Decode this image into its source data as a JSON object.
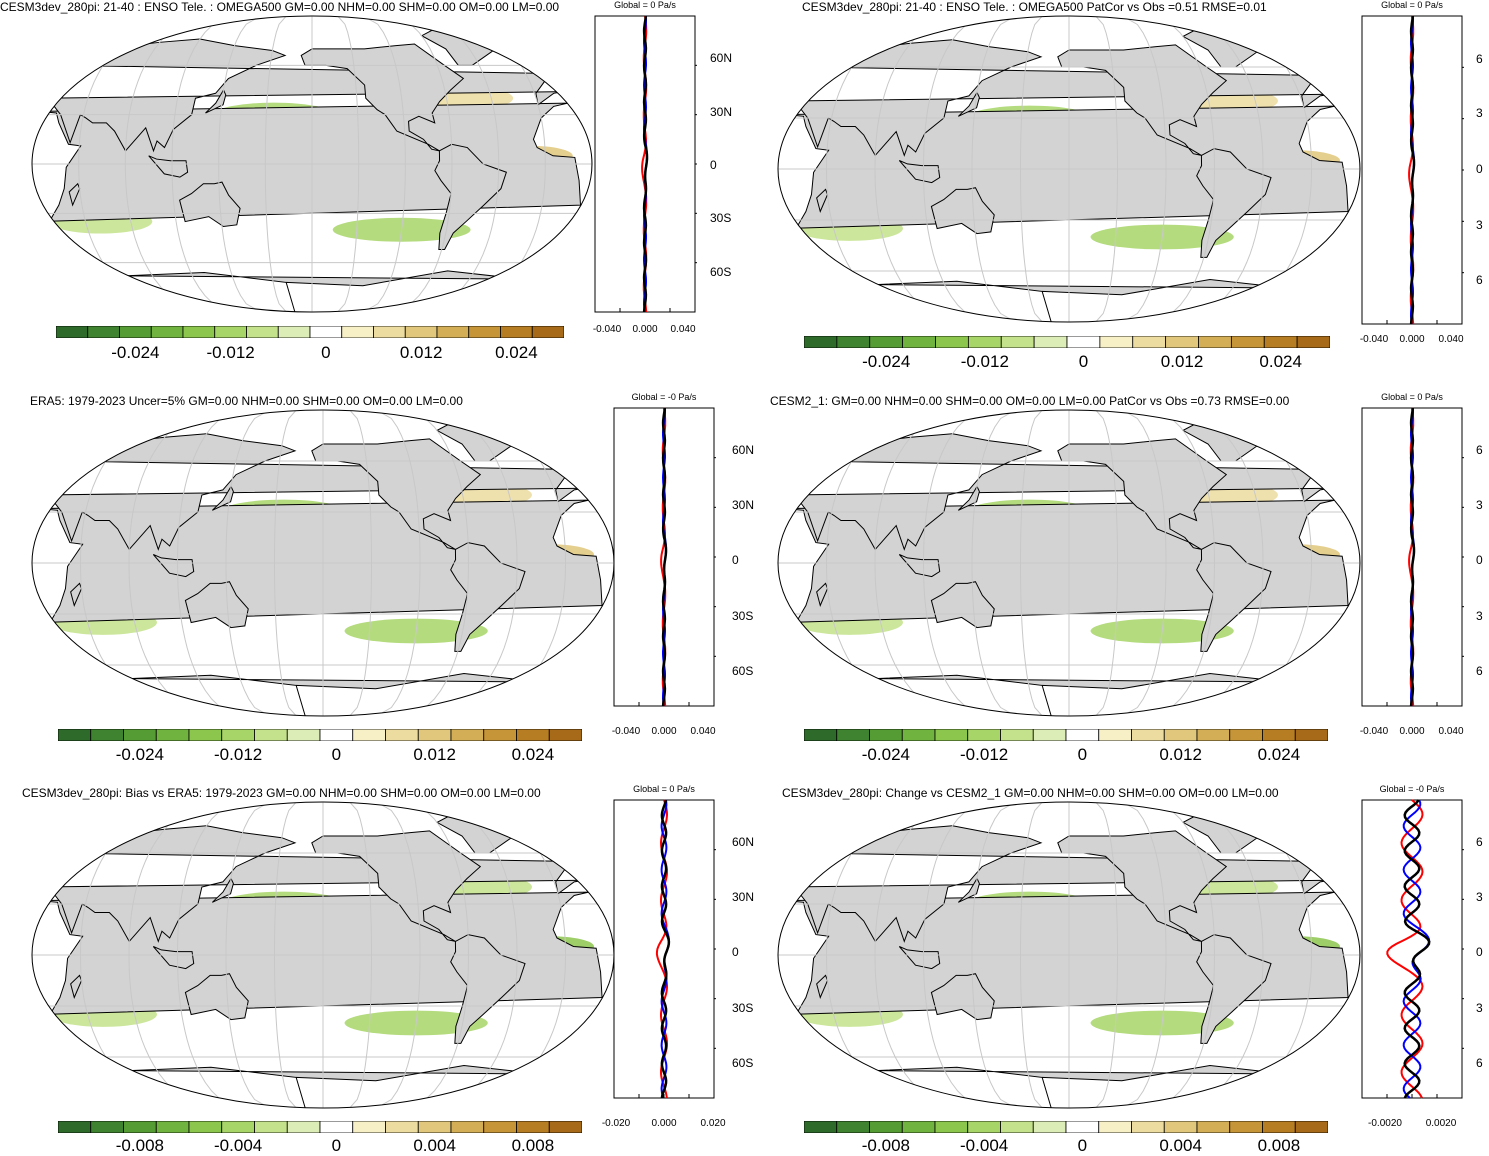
{
  "panels": [
    {
      "id": "p1",
      "title": "CESM3dev_280pi: 21-40 : ENSO Tele. : OMEGA500 GM=0.00 NHM=0.00 SHM=0.00 OM=0.00 LM=0.00",
      "colorbar_labels": [
        "-0.024",
        "-0.012",
        "0",
        "0.012",
        "0.024"
      ],
      "zonal_title": "Global = 0 Pa/s",
      "zonal_x_labels": [
        "-0.040",
        "0.000",
        "0.040"
      ],
      "lat_labels": [
        "60N",
        "30N",
        "0",
        "30S",
        "60S"
      ]
    },
    {
      "id": "p2",
      "title": "CESM3dev_280pi: 21-40 : ENSO Tele. : OMEGA500 PatCor vs Obs =0.51 RMSE=0.01",
      "colorbar_labels": [
        "-0.024",
        "-0.012",
        "0",
        "0.012",
        "0.024"
      ],
      "zonal_title": "Global = 0 Pa/s",
      "zonal_x_labels": [
        "-0.040",
        "0.000",
        "0.040"
      ],
      "lat_labels": [
        "6",
        "3",
        "0",
        "3",
        "6"
      ]
    },
    {
      "id": "p3",
      "title": "ERA5: 1979-2023 Uncer=5% GM=0.00 NHM=0.00 SHM=0.00 OM=0.00 LM=0.00",
      "colorbar_labels": [
        "-0.024",
        "-0.012",
        "0",
        "0.012",
        "0.024"
      ],
      "zonal_title": "Global = -0 Pa/s",
      "zonal_x_labels": [
        "-0.040",
        "0.000",
        "0.040"
      ],
      "lat_labels": [
        "60N",
        "30N",
        "0",
        "30S",
        "60S"
      ]
    },
    {
      "id": "p4",
      "title": "CESM2_1: GM=0.00 NHM=0.00 SHM=0.00 OM=0.00 LM=0.00 PatCor vs Obs =0.73 RMSE=0.00",
      "colorbar_labels": [
        "-0.024",
        "-0.012",
        "0",
        "0.012",
        "0.024"
      ],
      "zonal_title": "Global = 0 Pa/s",
      "zonal_x_labels": [
        "-0.040",
        "0.000",
        "0.040"
      ],
      "lat_labels": [
        "6",
        "3",
        "0",
        "3",
        "6"
      ]
    },
    {
      "id": "p5",
      "title": "CESM3dev_280pi: Bias vs ERA5: 1979-2023 GM=0.00 NHM=0.00 SHM=0.00 OM=0.00 LM=0.00",
      "colorbar_labels": [
        "-0.008",
        "-0.004",
        "0",
        "0.004",
        "0.008"
      ],
      "zonal_title": "Global = 0 Pa/s",
      "zonal_x_labels": [
        "-0.020",
        "0.000",
        "0.020"
      ],
      "lat_labels": [
        "60N",
        "30N",
        "0",
        "30S",
        "60S"
      ]
    },
    {
      "id": "p6",
      "title": "CESM3dev_280pi: Change vs CESM2_1 GM=0.00 NHM=0.00 SHM=0.00 OM=0.00 LM=0.00",
      "colorbar_labels": [
        "-0.008",
        "-0.004",
        "0",
        "0.004",
        "0.008"
      ],
      "zonal_title": "Global = -0 Pa/s",
      "zonal_x_labels": [
        "-0.0020",
        "0.0020"
      ],
      "lat_labels": [
        "6",
        "3",
        "0",
        "3",
        "6"
      ]
    }
  ],
  "colors": {
    "land": "#d3d3d3",
    "ocean": "#ffffff",
    "coast": "#000000",
    "grid": "#c8c8c8",
    "line_red": "#ff0000",
    "line_blue": "#0000ff",
    "line_black": "#000000",
    "palette": [
      "#2e6b2b",
      "#3f822f",
      "#569c35",
      "#71b33f",
      "#8cc64d",
      "#a8d568",
      "#c3e28b",
      "#dcedb8",
      "#ffffff",
      "#f7efc6",
      "#ecdc9f",
      "#e0c77b",
      "#d3ae57",
      "#c59537",
      "#b77d22",
      "#a76a18"
    ]
  }
}
